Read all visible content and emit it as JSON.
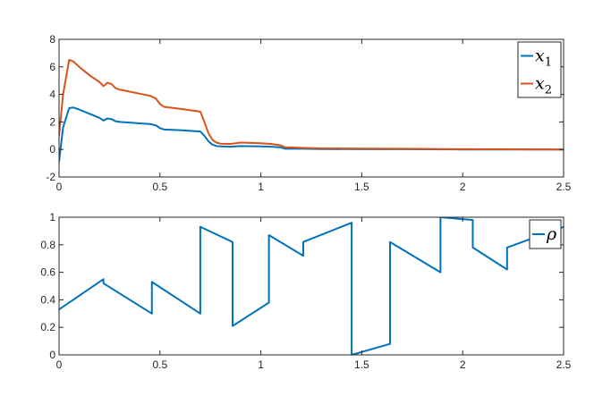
{
  "chart_data": [
    {
      "type": "line",
      "title": "",
      "xlabel": "",
      "ylabel": "",
      "xlim": [
        0,
        2.5
      ],
      "ylim": [
        -2,
        8
      ],
      "xticks": [
        "0",
        "0.5",
        "1",
        "1.5",
        "2",
        "2.5"
      ],
      "yticks": [
        "-2",
        "0",
        "2",
        "4",
        "6",
        "8"
      ],
      "grid": false,
      "legend_position": "top-right",
      "series": [
        {
          "name": "x",
          "subscript": "1",
          "color": "#0072BD",
          "x": [
            0,
            0.02,
            0.05,
            0.07,
            0.1,
            0.15,
            0.2,
            0.22,
            0.24,
            0.26,
            0.28,
            0.3,
            0.35,
            0.4,
            0.45,
            0.48,
            0.5,
            0.52,
            0.6,
            0.7,
            0.72,
            0.74,
            0.76,
            0.78,
            0.8,
            0.85,
            0.9,
            1.0,
            1.05,
            1.1,
            1.12,
            1.15,
            1.2,
            1.3,
            1.5,
            1.7,
            2.0,
            2.5
          ],
          "y": [
            -0.9,
            1.6,
            3.0,
            3.05,
            2.9,
            2.6,
            2.3,
            2.1,
            2.25,
            2.2,
            2.05,
            2.0,
            1.95,
            1.9,
            1.85,
            1.75,
            1.55,
            1.45,
            1.4,
            1.3,
            1.0,
            0.6,
            0.35,
            0.25,
            0.22,
            0.2,
            0.25,
            0.22,
            0.2,
            0.15,
            0.05,
            0.05,
            0.05,
            0.03,
            0.02,
            0.02,
            0.0,
            0.0
          ]
        },
        {
          "name": "x",
          "subscript": "2",
          "color": "#D95319",
          "x": [
            0,
            0.02,
            0.05,
            0.07,
            0.1,
            0.15,
            0.2,
            0.22,
            0.24,
            0.26,
            0.28,
            0.3,
            0.35,
            0.4,
            0.45,
            0.48,
            0.5,
            0.52,
            0.6,
            0.7,
            0.72,
            0.74,
            0.76,
            0.78,
            0.8,
            0.85,
            0.9,
            1.0,
            1.05,
            1.1,
            1.12,
            1.15,
            1.2,
            1.3,
            1.5,
            1.7,
            2.0,
            2.5
          ],
          "y": [
            1.0,
            4.0,
            6.5,
            6.4,
            6.0,
            5.4,
            4.9,
            4.6,
            4.85,
            4.75,
            4.45,
            4.35,
            4.2,
            4.05,
            3.9,
            3.7,
            3.3,
            3.1,
            2.95,
            2.75,
            2.0,
            1.2,
            0.7,
            0.5,
            0.42,
            0.4,
            0.5,
            0.45,
            0.4,
            0.3,
            0.15,
            0.15,
            0.12,
            0.08,
            0.06,
            0.05,
            0.02,
            0.0
          ]
        }
      ]
    },
    {
      "type": "line",
      "title": "",
      "xlabel": "",
      "ylabel": "",
      "xlim": [
        0,
        2.5
      ],
      "ylim": [
        0,
        1
      ],
      "xticks": [
        "0",
        "0.5",
        "1",
        "1.5",
        "2",
        "2.5"
      ],
      "yticks": [
        "0",
        "0.2",
        "0.4",
        "0.6",
        "0.8",
        "1"
      ],
      "grid": false,
      "legend_position": "top-right",
      "series": [
        {
          "name": "ρ",
          "color": "#0072BD",
          "x": [
            0,
            0.22,
            0.22,
            0.46,
            0.46,
            0.7,
            0.7,
            0.86,
            0.86,
            1.04,
            1.04,
            1.21,
            1.21,
            1.45,
            1.45,
            1.64,
            1.64,
            1.89,
            1.89,
            2.05,
            2.05,
            2.22,
            2.22,
            2.5
          ],
          "y": [
            0.33,
            0.55,
            0.52,
            0.3,
            0.53,
            0.3,
            0.93,
            0.82,
            0.21,
            0.38,
            0.87,
            0.72,
            0.82,
            0.96,
            0.0,
            0.08,
            0.82,
            0.6,
            1.0,
            0.98,
            0.78,
            0.62,
            0.78,
            0.93
          ]
        }
      ]
    }
  ]
}
